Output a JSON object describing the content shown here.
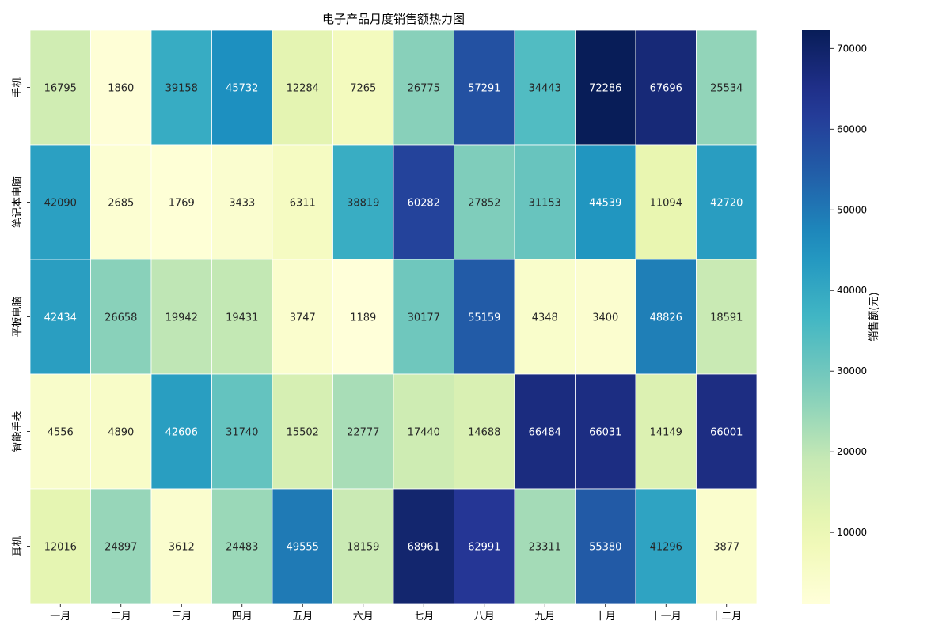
{
  "chart_data": {
    "type": "heatmap",
    "title": "电子产品月度销售额热力图",
    "x_categories": [
      "一月",
      "二月",
      "三月",
      "四月",
      "五月",
      "六月",
      "七月",
      "八月",
      "九月",
      "十月",
      "十一月",
      "十二月"
    ],
    "y_categories": [
      "手机",
      "笔记本电脑",
      "平板电脑",
      "智能手表",
      "耳机"
    ],
    "values": [
      [
        16795,
        1860,
        39158,
        45732,
        12284,
        7265,
        26775,
        57291,
        34443,
        72286,
        67696,
        25534
      ],
      [
        42090,
        2685,
        1769,
        3433,
        6311,
        38819,
        60282,
        27852,
        31153,
        44539,
        11094,
        42720
      ],
      [
        42434,
        26658,
        19942,
        19431,
        3747,
        1189,
        30177,
        55159,
        4348,
        3400,
        48826,
        18591
      ],
      [
        4556,
        4890,
        42606,
        31740,
        15502,
        22777,
        17440,
        14688,
        66484,
        66031,
        14149,
        66001
      ],
      [
        12016,
        24897,
        3612,
        24483,
        49555,
        18159,
        68961,
        62991,
        23311,
        55380,
        41296,
        3877
      ]
    ],
    "colorbar": {
      "label": "销售额(元)",
      "ticks": [
        10000,
        20000,
        30000,
        40000,
        50000,
        60000,
        70000
      ],
      "vmin": 1189,
      "vmax": 72286,
      "colormap": "YlGnBu"
    }
  }
}
